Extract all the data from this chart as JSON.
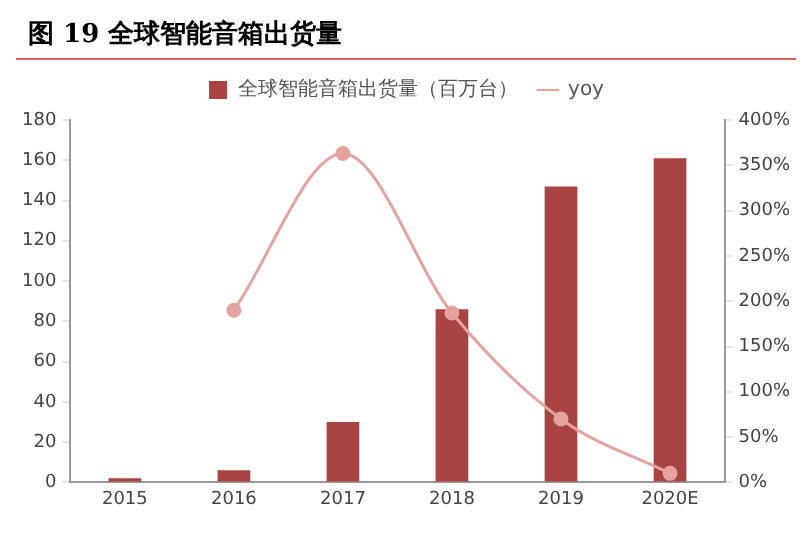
{
  "chart_data": {
    "type": "bar",
    "title": "图 19 全球智能音箱出货量",
    "categories": [
      "2015",
      "2016",
      "2017",
      "2018",
      "2019",
      "2020E"
    ],
    "series": [
      {
        "name": "全球智能音箱出货量（百万台）",
        "color": "#a94442",
        "values": [
          2,
          6,
          30,
          86,
          147,
          161
        ]
      },
      {
        "name": "yoy",
        "type": "line",
        "axis": "y2",
        "color": "#e5a3a0",
        "marker": "circle",
        "values": [
          null,
          190,
          363,
          187,
          70,
          10
        ]
      }
    ],
    "ylim": [
      0,
      180
    ],
    "yticks": [
      0,
      20,
      40,
      60,
      80,
      100,
      120,
      140,
      160,
      180
    ],
    "y2lim": [
      0,
      400
    ],
    "y2ticks": [
      {
        "value": 0,
        "label": "0%"
      },
      {
        "value": 50,
        "label": "50%"
      },
      {
        "value": 100,
        "label": "100%"
      },
      {
        "value": 150,
        "label": "150%"
      },
      {
        "value": 200,
        "label": "200%"
      },
      {
        "value": 250,
        "label": "250%"
      },
      {
        "value": 300,
        "label": "300%"
      },
      {
        "value": 350,
        "label": "350%"
      },
      {
        "value": 400,
        "label": "400%"
      }
    ],
    "grid": false,
    "legend": "top"
  }
}
